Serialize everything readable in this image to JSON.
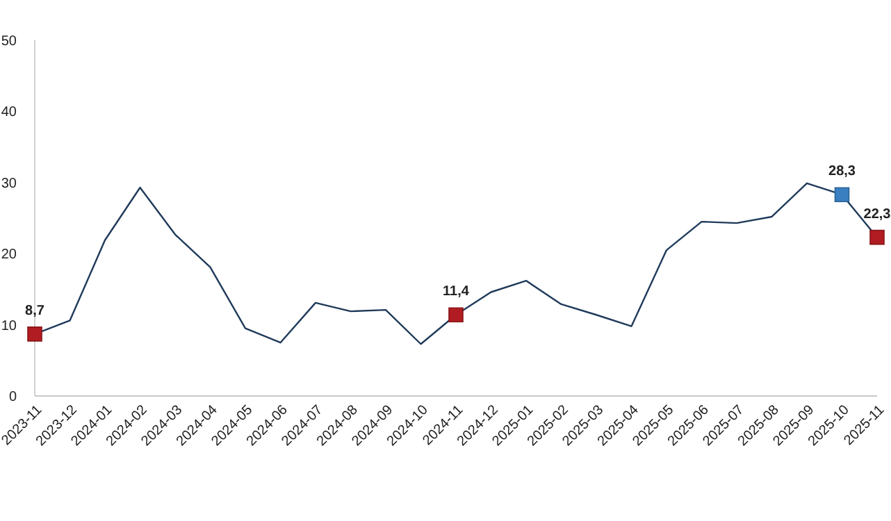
{
  "chart_data": {
    "type": "line",
    "categories": [
      "2023-11",
      "2023-12",
      "2024-01",
      "2024-02",
      "2024-03",
      "2024-04",
      "2024-05",
      "2024-06",
      "2024-07",
      "2024-08",
      "2024-09",
      "2024-10",
      "2024-11",
      "2024-12",
      "2025-01",
      "2025-02",
      "2025-03",
      "2025-04",
      "2025-05",
      "2025-06",
      "2025-07",
      "2025-08",
      "2025-09",
      "2025-10",
      "2025-11"
    ],
    "series": [
      {
        "color": "#1f3a5a",
        "marker": "none",
        "values": [
          8.7,
          10.6,
          21.9,
          29.3,
          22.7,
          18.1,
          9.5,
          7.5,
          13.1,
          11.9,
          12.1,
          7.3,
          11.4,
          14.6,
          16.2,
          12.9,
          11.4,
          9.8,
          20.5,
          24.5,
          24.3,
          25.2,
          29.9,
          28.3,
          22.3
        ]
      },
      {
        "type": "scatter",
        "marker": "square",
        "values": [
          8.7,
          null,
          null,
          null,
          null,
          null,
          null,
          null,
          null,
          null,
          null,
          null,
          11.4,
          null,
          null,
          null,
          null,
          null,
          null,
          null,
          null,
          null,
          null,
          28.3,
          22.3
        ],
        "colors": [
          "#b01c22",
          null,
          null,
          null,
          null,
          null,
          null,
          null,
          null,
          null,
          null,
          null,
          "#b01c22",
          null,
          null,
          null,
          null,
          null,
          null,
          null,
          null,
          null,
          null,
          "#3a7fc0",
          "#b01c22"
        ],
        "value_labels": [
          "8,7",
          null,
          null,
          null,
          null,
          null,
          null,
          null,
          null,
          null,
          null,
          null,
          "11,4",
          null,
          null,
          null,
          null,
          null,
          null,
          null,
          null,
          null,
          null,
          "28,3",
          "22,3"
        ]
      }
    ],
    "ylim": [
      0,
      50
    ],
    "yticks": [
      0,
      10,
      20,
      30,
      40,
      50
    ],
    "grid": false
  }
}
